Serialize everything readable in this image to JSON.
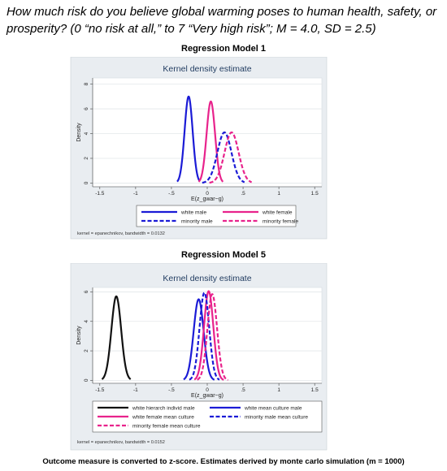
{
  "question": "How much risk do you believe global warming poses to human health, safety, or prosperity? (0 “no risk at all,” to 7 “Very high risk”; M = 4.0, SD = 2.5)",
  "footnote": "Outcome measure is converted to z-score. Estimates derived by monte carlo simulation (m = 1000)",
  "chart_data": [
    {
      "type": "line",
      "model_title": "Regression Model 1",
      "title": "Kernel density estimate",
      "xlabel": "E(z_gwar~g)",
      "ylabel": "Density",
      "xlim": [
        -1.6,
        1.6
      ],
      "ylim": [
        -0.3,
        8.5
      ],
      "xticks": [
        -1.5,
        -1,
        -0.5,
        0,
        0.5,
        1,
        1.5
      ],
      "xtick_labels": [
        "-1.5",
        "-1",
        "-.5",
        "0",
        ".5",
        "1",
        "1.5"
      ],
      "yticks": [
        0,
        2,
        4,
        6,
        8
      ],
      "ytick_labels": [
        "0",
        "2",
        "4",
        "6",
        "8"
      ],
      "grid": true,
      "legend_position": "bottom",
      "note": "kernel = epanechnikov, bandwidth = 0.0132",
      "series": [
        {
          "name": "white male",
          "color": "#1b1bd6",
          "dash": "solid",
          "curve": {
            "mean": -0.26,
            "sd": 0.056,
            "peak": 7.0,
            "xmin": -0.42,
            "xmax": -0.11
          }
        },
        {
          "name": "white female",
          "color": "#e8238c",
          "dash": "solid",
          "curve": {
            "mean": 0.05,
            "sd": 0.059,
            "peak": 6.6,
            "xmin": -0.12,
            "xmax": 0.22
          }
        },
        {
          "name": "minority male",
          "color": "#1b1bd6",
          "dash": "dashed",
          "curve": {
            "mean": 0.24,
            "sd": 0.098,
            "peak": 4.1,
            "xmin": -0.07,
            "xmax": 0.52
          }
        },
        {
          "name": "minority female",
          "color": "#e8238c",
          "dash": "dashed",
          "curve": {
            "mean": 0.34,
            "sd": 0.098,
            "peak": 4.1,
            "xmin": 0.03,
            "xmax": 0.62
          }
        }
      ]
    },
    {
      "type": "line",
      "model_title": "Regression Model 5",
      "title": "Kernel density estimate",
      "xlabel": "E(z_gwar~g)",
      "ylabel": "Density",
      "xlim": [
        -1.6,
        1.6
      ],
      "ylim": [
        -0.2,
        6.3
      ],
      "xticks": [
        -1.5,
        -1,
        -0.5,
        0,
        0.5,
        1,
        1.5
      ],
      "xtick_labels": [
        "-1.5",
        "-1",
        "-.5",
        "0",
        ".5",
        "1",
        "1.5"
      ],
      "yticks": [
        0,
        2,
        4,
        6
      ],
      "ytick_labels": [
        "0",
        "2",
        "4",
        "6"
      ],
      "grid": true,
      "legend_position": "bottom",
      "note": "kernel = epanechnikov, bandwidth = 0.0152",
      "series": [
        {
          "name": "white hierarch individ male",
          "color": "#111111",
          "dash": "solid",
          "curve": {
            "mean": -1.27,
            "sd": 0.068,
            "peak": 5.7,
            "xmin": -1.47,
            "xmax": -1.07
          }
        },
        {
          "name": "white mean culture male",
          "color": "#1b1bd6",
          "dash": "solid",
          "curve": {
            "mean": -0.12,
            "sd": 0.07,
            "peak": 5.5,
            "xmin": -0.33,
            "xmax": 0.1
          }
        },
        {
          "name": "white female mean culture",
          "color": "#e8238c",
          "dash": "solid",
          "curve": {
            "mean": 0.02,
            "sd": 0.065,
            "peak": 6.05,
            "xmin": -0.18,
            "xmax": 0.23
          }
        },
        {
          "name": "minority male mean culture",
          "color": "#1b1bd6",
          "dash": "dashed",
          "curve": {
            "mean": -0.04,
            "sd": 0.067,
            "peak": 5.95,
            "xmin": -0.25,
            "xmax": 0.17
          }
        },
        {
          "name": "minority female mean culture",
          "color": "#e8238c",
          "dash": "dashed",
          "curve": {
            "mean": 0.07,
            "sd": 0.067,
            "peak": 5.85,
            "xmin": -0.14,
            "xmax": 0.29
          }
        }
      ]
    }
  ]
}
